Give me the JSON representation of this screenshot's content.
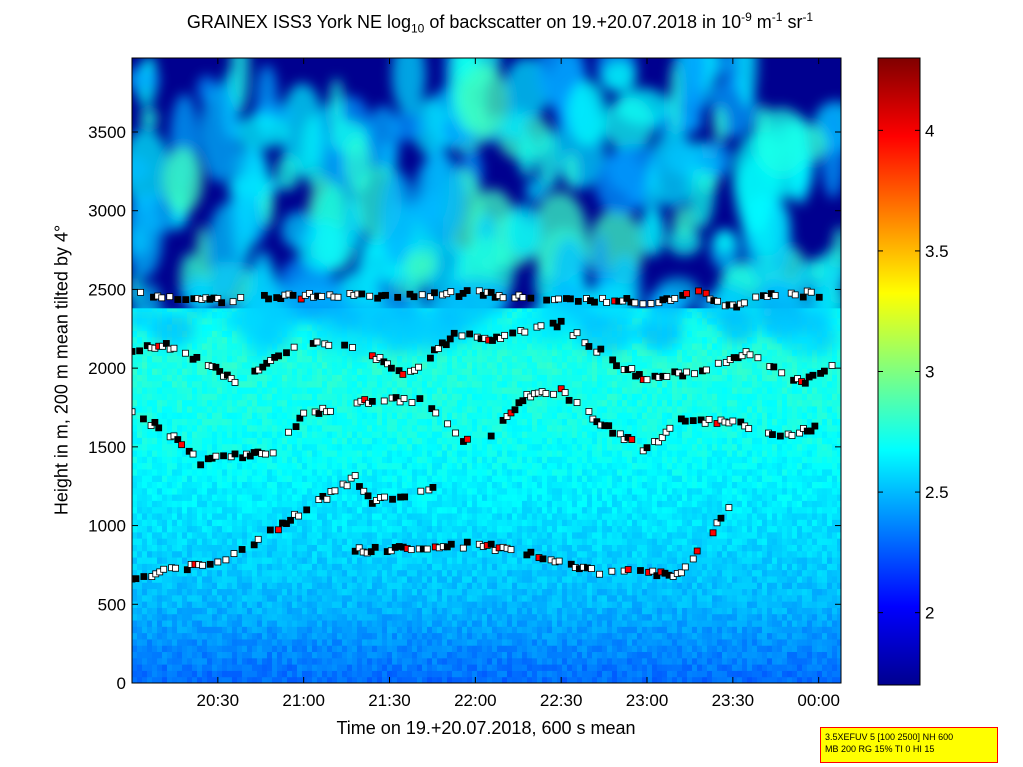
{
  "chart_data": {
    "type": "heatmap",
    "title": {
      "part1": "GRAINEX ISS3 York NE log",
      "sub": "10",
      "part2": " of backscatter on 19.+20.07.2018 in 10",
      "sup1": "-9",
      "part3": " m",
      "sup2": "-1",
      "part4": " sr",
      "sup3": "-1"
    },
    "xlabel": "Time on 19.+20.07.2018, 600 s mean",
    "ylabel": "Height in m, 200 m mean tilted by 4°",
    "x_range_hours": [
      20.0,
      24.13
    ],
    "x_ticks": [
      {
        "h": 20.5,
        "label": "20:30"
      },
      {
        "h": 21.0,
        "label": "21:00"
      },
      {
        "h": 21.5,
        "label": "21:30"
      },
      {
        "h": 22.0,
        "label": "22:00"
      },
      {
        "h": 22.5,
        "label": "22:30"
      },
      {
        "h": 23.0,
        "label": "23:00"
      },
      {
        "h": 23.5,
        "label": "23:30"
      },
      {
        "h": 24.0,
        "label": "00:00"
      }
    ],
    "y_range": [
      0,
      3970
    ],
    "y_ticks": [
      0,
      500,
      1000,
      1500,
      2000,
      2500,
      3000,
      3500
    ],
    "colorbar": {
      "range": [
        1.7,
        4.3
      ],
      "ticks": [
        2,
        2.5,
        3,
        3.5,
        4
      ],
      "colormap": "jet"
    },
    "background_profile_description_values": [
      {
        "height": 0,
        "value": 2.3
      },
      {
        "height": 500,
        "value": 2.5
      },
      {
        "height": 1000,
        "value": 2.6
      },
      {
        "height": 1500,
        "value": 2.7
      },
      {
        "height": 2000,
        "value": 2.75
      },
      {
        "height": 2400,
        "value": 2.7
      }
    ],
    "layer_series": [
      {
        "name_hidden": true,
        "points": [
          [
            20.0,
            2470
          ],
          [
            20.15,
            2460
          ],
          [
            20.5,
            2430
          ],
          [
            20.7,
            2440
          ],
          [
            21.2,
            2470
          ],
          [
            21.5,
            2450
          ],
          [
            22.0,
            2480
          ],
          [
            22.3,
            2450
          ],
          [
            22.6,
            2440
          ],
          [
            23.0,
            2420
          ],
          [
            23.3,
            2480
          ],
          [
            23.5,
            2390
          ],
          [
            23.7,
            2470
          ],
          [
            24.05,
            2470
          ]
        ]
      },
      {
        "name_hidden": true,
        "points": [
          [
            20.0,
            2120
          ],
          [
            20.2,
            2150
          ],
          [
            20.4,
            2050
          ],
          [
            20.6,
            1920
          ],
          [
            20.9,
            2100
          ],
          [
            21.1,
            2180
          ],
          [
            21.4,
            2080
          ],
          [
            21.6,
            1950
          ],
          [
            21.9,
            2230
          ],
          [
            22.1,
            2180
          ],
          [
            22.5,
            2280
          ],
          [
            22.8,
            2050
          ],
          [
            23.0,
            1920
          ],
          [
            23.3,
            1990
          ],
          [
            23.6,
            2100
          ],
          [
            23.9,
            1900
          ],
          [
            24.1,
            2040
          ]
        ]
      },
      {
        "name_hidden": true,
        "points": [
          [
            20.0,
            1720
          ],
          [
            20.2,
            1600
          ],
          [
            20.4,
            1400
          ],
          [
            20.6,
            1450
          ],
          [
            20.8,
            1450
          ],
          [
            21.0,
            1700
          ],
          [
            21.2,
            1750
          ],
          [
            21.4,
            1800
          ],
          [
            21.7,
            1800
          ],
          [
            22.0,
            1480
          ],
          [
            22.3,
            1820
          ],
          [
            22.5,
            1850
          ],
          [
            22.8,
            1600
          ],
          [
            23.0,
            1480
          ],
          [
            23.2,
            1680
          ],
          [
            23.5,
            1650
          ],
          [
            23.8,
            1580
          ],
          [
            24.0,
            1620
          ]
        ]
      },
      {
        "name_hidden": true,
        "points": [
          [
            20.0,
            660
          ],
          [
            20.3,
            730
          ],
          [
            20.5,
            750
          ],
          [
            21.3,
            1300
          ],
          [
            21.4,
            1150
          ],
          [
            21.8,
            1250
          ],
          [
            21.3,
            840
          ],
          [
            22.0,
            880
          ],
          [
            22.3,
            830
          ],
          [
            22.7,
            710
          ],
          [
            23.2,
            690
          ],
          [
            23.5,
            1150
          ]
        ]
      }
    ]
  },
  "info_box": {
    "line1": "3.5XEFUV 5 [100 2500] NH 600",
    "line2": "MB 200 RG 15% TI 0 HI 15"
  },
  "colors": {
    "low": "#00008f",
    "mid": "#00ffff",
    "high": "#800000"
  }
}
